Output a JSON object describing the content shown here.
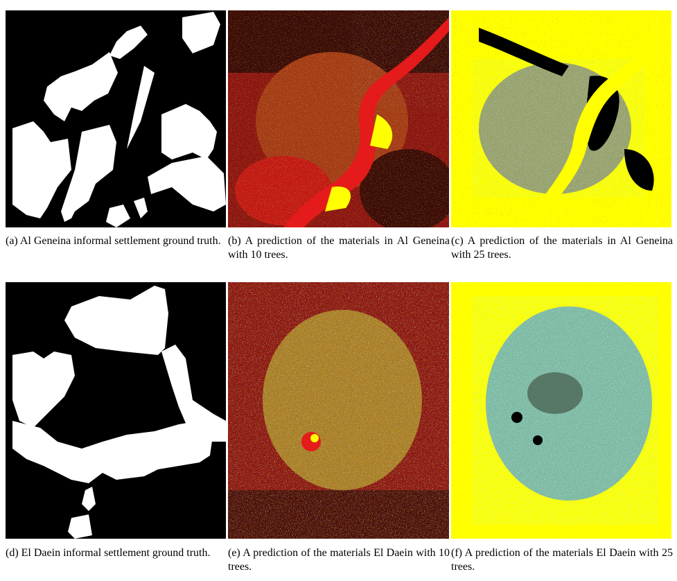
{
  "figure": {
    "panels": [
      {
        "id": "a",
        "caption": "(a) Al Geneina informal settlement ground truth."
      },
      {
        "id": "b",
        "caption": "(b) A prediction of the materials in Al Geneina with 10 trees."
      },
      {
        "id": "c",
        "caption": "(c) A prediction of the materials in Al Geneina with 25 trees."
      },
      {
        "id": "d",
        "caption": "(d) El Daein informal settlement ground truth."
      },
      {
        "id": "e",
        "caption": "(e) A prediction of the materials El Daein with 10 trees."
      },
      {
        "id": "f",
        "caption": "(f) A prediction of the materials El Daein with 25 trees."
      }
    ]
  },
  "colors": {
    "mask_bg": "#000000",
    "mask_fg": "#ffffff",
    "red": "#e01a1a",
    "dark_red": "#7a1010",
    "yellow": "#ffff00",
    "cyan": "#5fdde6",
    "black": "#000000"
  }
}
